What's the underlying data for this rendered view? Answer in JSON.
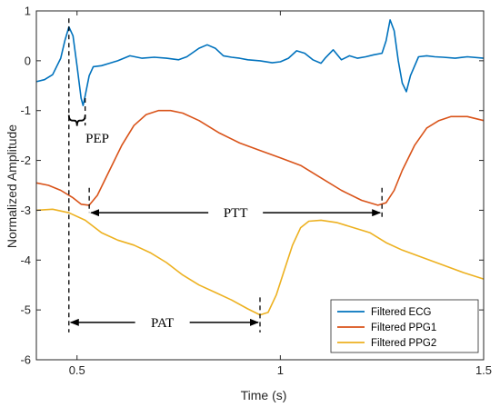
{
  "chart_data": {
    "type": "line",
    "xlabel": "Time (s)",
    "ylabel": "Normalized Amplitude",
    "xlim": [
      0.4,
      1.5
    ],
    "ylim": [
      -6,
      1
    ],
    "x_ticks": [
      0.5,
      1,
      1.5
    ],
    "x_tick_labels": [
      "0.5",
      "1",
      "1.5"
    ],
    "y_ticks": [
      1,
      0,
      -1,
      -2,
      -3,
      -4,
      -5,
      -6
    ],
    "y_tick_labels": [
      "1",
      "0",
      "-1",
      "-2",
      "-3",
      "-4",
      "-5",
      "-6"
    ],
    "grid": false,
    "legend_position": "bottom-right",
    "series": [
      {
        "name": "Filtered ECG",
        "color": "#0072BD",
        "points": [
          [
            0.4,
            -0.42
          ],
          [
            0.42,
            -0.38
          ],
          [
            0.44,
            -0.28
          ],
          [
            0.46,
            0.05
          ],
          [
            0.47,
            0.4
          ],
          [
            0.48,
            0.68
          ],
          [
            0.49,
            0.5
          ],
          [
            0.5,
            -0.1
          ],
          [
            0.51,
            -0.75
          ],
          [
            0.515,
            -0.9
          ],
          [
            0.52,
            -0.7
          ],
          [
            0.53,
            -0.3
          ],
          [
            0.54,
            -0.12
          ],
          [
            0.56,
            -0.1
          ],
          [
            0.58,
            -0.05
          ],
          [
            0.6,
            0.0
          ],
          [
            0.63,
            0.1
          ],
          [
            0.66,
            0.05
          ],
          [
            0.69,
            0.07
          ],
          [
            0.72,
            0.05
          ],
          [
            0.75,
            0.02
          ],
          [
            0.77,
            0.08
          ],
          [
            0.8,
            0.25
          ],
          [
            0.82,
            0.32
          ],
          [
            0.84,
            0.25
          ],
          [
            0.86,
            0.1
          ],
          [
            0.88,
            0.07
          ],
          [
            0.9,
            0.05
          ],
          [
            0.92,
            0.02
          ],
          [
            0.95,
            0.0
          ],
          [
            0.98,
            -0.04
          ],
          [
            1.0,
            -0.02
          ],
          [
            1.02,
            0.05
          ],
          [
            1.04,
            0.2
          ],
          [
            1.06,
            0.15
          ],
          [
            1.08,
            0.02
          ],
          [
            1.1,
            -0.05
          ],
          [
            1.11,
            0.05
          ],
          [
            1.13,
            0.22
          ],
          [
            1.15,
            0.02
          ],
          [
            1.17,
            0.1
          ],
          [
            1.19,
            0.05
          ],
          [
            1.21,
            0.08
          ],
          [
            1.23,
            0.12
          ],
          [
            1.25,
            0.15
          ],
          [
            1.26,
            0.4
          ],
          [
            1.27,
            0.82
          ],
          [
            1.28,
            0.6
          ],
          [
            1.29,
            0.0
          ],
          [
            1.3,
            -0.45
          ],
          [
            1.31,
            -0.62
          ],
          [
            1.32,
            -0.3
          ],
          [
            1.34,
            0.08
          ],
          [
            1.36,
            0.1
          ],
          [
            1.38,
            0.08
          ],
          [
            1.4,
            0.07
          ],
          [
            1.43,
            0.05
          ],
          [
            1.46,
            0.08
          ],
          [
            1.5,
            0.05
          ]
        ]
      },
      {
        "name": "Filtered PPG1",
        "color": "#D95319",
        "points": [
          [
            0.4,
            -2.45
          ],
          [
            0.43,
            -2.5
          ],
          [
            0.46,
            -2.6
          ],
          [
            0.49,
            -2.75
          ],
          [
            0.51,
            -2.88
          ],
          [
            0.53,
            -2.9
          ],
          [
            0.55,
            -2.7
          ],
          [
            0.58,
            -2.2
          ],
          [
            0.61,
            -1.7
          ],
          [
            0.64,
            -1.3
          ],
          [
            0.67,
            -1.08
          ],
          [
            0.7,
            -1.0
          ],
          [
            0.73,
            -1.0
          ],
          [
            0.76,
            -1.05
          ],
          [
            0.8,
            -1.2
          ],
          [
            0.85,
            -1.45
          ],
          [
            0.9,
            -1.65
          ],
          [
            0.95,
            -1.8
          ],
          [
            1.0,
            -1.95
          ],
          [
            1.05,
            -2.1
          ],
          [
            1.1,
            -2.35
          ],
          [
            1.15,
            -2.6
          ],
          [
            1.2,
            -2.8
          ],
          [
            1.24,
            -2.9
          ],
          [
            1.26,
            -2.85
          ],
          [
            1.28,
            -2.6
          ],
          [
            1.3,
            -2.2
          ],
          [
            1.33,
            -1.7
          ],
          [
            1.36,
            -1.35
          ],
          [
            1.39,
            -1.2
          ],
          [
            1.42,
            -1.12
          ],
          [
            1.46,
            -1.12
          ],
          [
            1.5,
            -1.2
          ]
        ]
      },
      {
        "name": "Filtered PPG2",
        "color": "#EDB120",
        "points": [
          [
            0.4,
            -3.0
          ],
          [
            0.44,
            -2.98
          ],
          [
            0.48,
            -3.05
          ],
          [
            0.52,
            -3.2
          ],
          [
            0.56,
            -3.45
          ],
          [
            0.6,
            -3.6
          ],
          [
            0.64,
            -3.7
          ],
          [
            0.68,
            -3.85
          ],
          [
            0.72,
            -4.05
          ],
          [
            0.76,
            -4.3
          ],
          [
            0.8,
            -4.5
          ],
          [
            0.84,
            -4.65
          ],
          [
            0.88,
            -4.8
          ],
          [
            0.92,
            -4.98
          ],
          [
            0.95,
            -5.1
          ],
          [
            0.97,
            -5.05
          ],
          [
            0.99,
            -4.7
          ],
          [
            1.01,
            -4.2
          ],
          [
            1.03,
            -3.7
          ],
          [
            1.05,
            -3.35
          ],
          [
            1.07,
            -3.22
          ],
          [
            1.1,
            -3.2
          ],
          [
            1.14,
            -3.25
          ],
          [
            1.18,
            -3.35
          ],
          [
            1.22,
            -3.45
          ],
          [
            1.26,
            -3.65
          ],
          [
            1.3,
            -3.8
          ],
          [
            1.35,
            -3.95
          ],
          [
            1.4,
            -4.1
          ],
          [
            1.45,
            -4.25
          ],
          [
            1.5,
            -4.38
          ]
        ]
      }
    ],
    "annotations": [
      {
        "label": "PEP",
        "type": "bracket",
        "from_x": 0.48,
        "to_x": 0.52,
        "y": -1.2,
        "label_x": 0.53,
        "label_y": -1.55
      },
      {
        "label": "PTT",
        "type": "double-arrow",
        "from_x": 0.53,
        "to_x": 1.25,
        "y": -3.05,
        "label_x": 0.89,
        "label_y": -3.05
      },
      {
        "label": "PAT",
        "type": "double-arrow",
        "from_x": 0.48,
        "to_x": 0.95,
        "y": -5.25,
        "label_x": 0.71,
        "label_y": -5.25
      }
    ],
    "markers": [
      {
        "x": 0.48,
        "y_top": 0.85,
        "y_bottom": -5.45
      },
      {
        "x": 0.52,
        "y_top": -0.75,
        "y_bottom": -1.3
      },
      {
        "x": 0.53,
        "y_top": -2.55,
        "y_bottom": -3.05
      },
      {
        "x": 1.25,
        "y_top": -2.55,
        "y_bottom": -3.15
      },
      {
        "x": 0.95,
        "y_top": -4.75,
        "y_bottom": -5.45
      }
    ]
  }
}
